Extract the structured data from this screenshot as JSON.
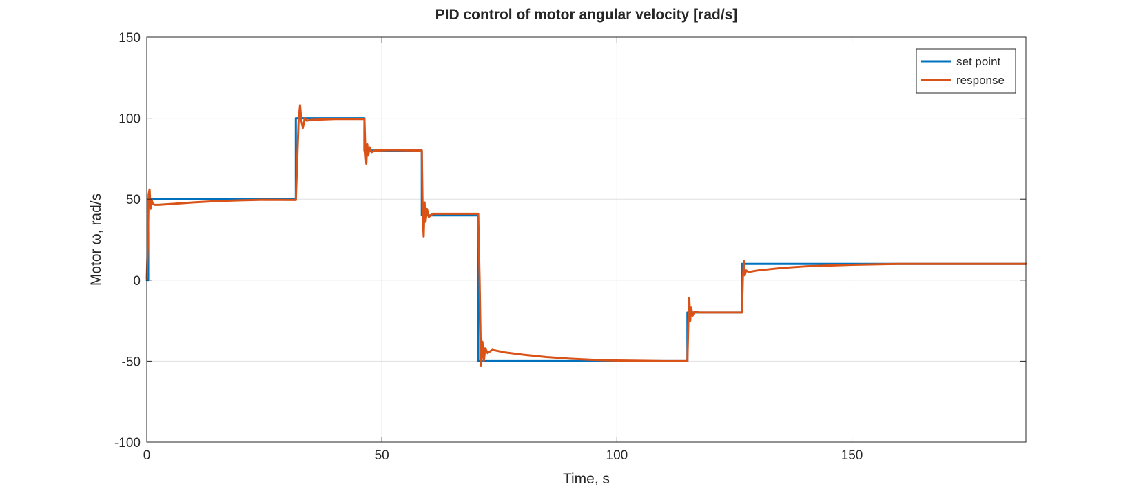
{
  "chart_data": {
    "type": "line",
    "title": "PID control of motor angular velocity [rad/s]",
    "xlabel": "Time, s",
    "ylabel": "Motor ω, rad/s",
    "xlim": [
      0,
      187
    ],
    "ylim": [
      -100,
      150
    ],
    "xticks": [
      0,
      50,
      100,
      150
    ],
    "yticks": [
      -100,
      -50,
      0,
      50,
      100,
      150
    ],
    "grid": true,
    "legend_position": "top-right",
    "series": [
      {
        "name": "set point",
        "color": "#0072BD",
        "x": [
          0,
          0.3,
          0.3,
          31.7,
          31.7,
          46.3,
          46.3,
          58.5,
          58.5,
          70.5,
          70.5,
          115,
          115,
          126.6,
          126.6,
          187
        ],
        "y": [
          0,
          0,
          50,
          50,
          100,
          100,
          80,
          80,
          40,
          40,
          -50,
          -50,
          -20,
          -20,
          10,
          10
        ]
      },
      {
        "name": "response",
        "color": "#D95319",
        "x": [
          0,
          0.2,
          0.4,
          0.6,
          0.8,
          1.0,
          1.3,
          1.7,
          2.5,
          5,
          10,
          15,
          20,
          25,
          31.7,
          32.0,
          32.3,
          32.6,
          32.9,
          33.2,
          33.6,
          34.0,
          35,
          40,
          46.3,
          46.5,
          46.7,
          46.9,
          47.1,
          47.4,
          47.8,
          48.5,
          52,
          58.5,
          58.7,
          58.9,
          59.1,
          59.3,
          59.6,
          60.0,
          60.8,
          65,
          70.5,
          70.8,
          71.1,
          71.4,
          71.7,
          72.0,
          72.5,
          73.5,
          76,
          80,
          85,
          90,
          95,
          100,
          105,
          110,
          115,
          115.2,
          115.4,
          115.6,
          115.8,
          116.1,
          116.5,
          117.5,
          121,
          126.6,
          126.8,
          127.0,
          127.2,
          127.5,
          128,
          130,
          135,
          140,
          145,
          150,
          160,
          170,
          187
        ],
        "y": [
          1,
          20,
          53,
          56,
          44,
          50,
          47,
          46.5,
          46.5,
          47,
          48,
          48.8,
          49.3,
          49.6,
          49.5,
          75,
          99,
          108,
          98,
          94,
          100,
          98.5,
          99,
          99.5,
          99.5,
          80,
          72,
          84,
          77,
          82,
          79,
          80,
          80.3,
          80,
          40,
          27,
          48,
          36,
          44,
          39,
          41,
          41,
          41,
          0,
          -53,
          -38,
          -50,
          -42,
          -45,
          -43,
          -44.5,
          -46,
          -47.5,
          -48.5,
          -49.2,
          -49.6,
          -49.8,
          -50,
          -50,
          -26,
          -11,
          -25,
          -17,
          -22,
          -19.5,
          -20,
          -20,
          -20,
          2,
          12,
          3,
          6,
          5,
          6,
          7.5,
          8.5,
          9,
          9.5,
          10,
          10,
          10
        ]
      }
    ]
  }
}
